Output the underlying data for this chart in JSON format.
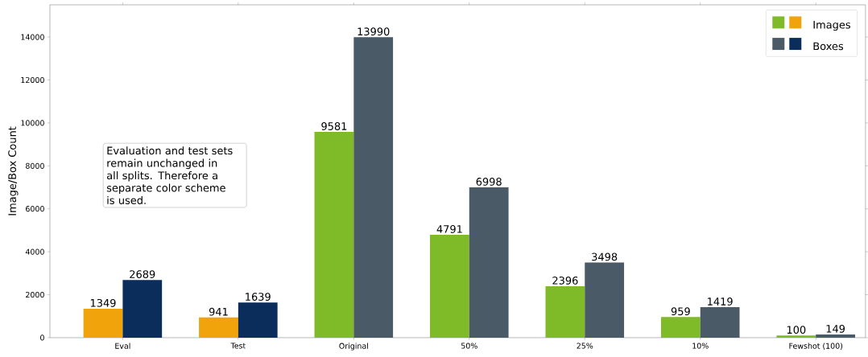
{
  "chart_data": {
    "type": "bar",
    "ylabel": "Image/Box Count",
    "categories": [
      "Eval",
      "Test",
      "Original",
      "50%",
      "25%",
      "10%",
      "Fewshot (100)"
    ],
    "series": [
      {
        "name": "Images",
        "colors": [
          "#f0a30a",
          "#f0a30a",
          "#7fba29",
          "#7fba29",
          "#7fba29",
          "#7fba29",
          "#7fba29"
        ],
        "values": [
          1349,
          941,
          9581,
          4791,
          2396,
          959,
          100
        ]
      },
      {
        "name": "Boxes",
        "colors": [
          "#0a2d5c",
          "#0a2d5c",
          "#4a5a66",
          "#4a5a66",
          "#4a5a66",
          "#4a5a66",
          "#4a5a66"
        ],
        "values": [
          2689,
          1639,
          13990,
          6998,
          3498,
          1419,
          149
        ]
      }
    ],
    "ylim": [
      0,
      15500
    ],
    "yticks": [
      0,
      2000,
      4000,
      6000,
      8000,
      10000,
      12000,
      14000
    ],
    "data_labels": true,
    "legend": "top right",
    "annotations": [
      "Evaluation and test sets remain unchanged in all splits. Therefore a separate color scheme is used."
    ]
  }
}
